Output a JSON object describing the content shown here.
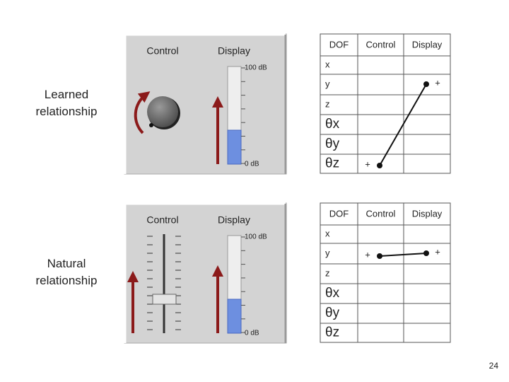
{
  "rows": [
    {
      "label": "Learned relationship",
      "panel": {
        "control": "Control",
        "display": "Display",
        "max": "100 dB",
        "min": "0 dB"
      },
      "table": {
        "headers": [
          "DOF",
          "Control",
          "Display"
        ],
        "dofs": [
          "x",
          "y",
          "z",
          "θx",
          "θy",
          "θz"
        ],
        "control_marker": "+",
        "display_marker": "+"
      }
    },
    {
      "label": "Natural relationship",
      "panel": {
        "control": "Control",
        "display": "Display",
        "max": "100 dB",
        "min": "0 dB"
      },
      "table": {
        "headers": [
          "DOF",
          "Control",
          "Display"
        ],
        "dofs": [
          "x",
          "y",
          "z",
          "θx",
          "θy",
          "θz"
        ],
        "control_marker": "+",
        "display_marker": "+"
      }
    }
  ],
  "page_number": "24"
}
